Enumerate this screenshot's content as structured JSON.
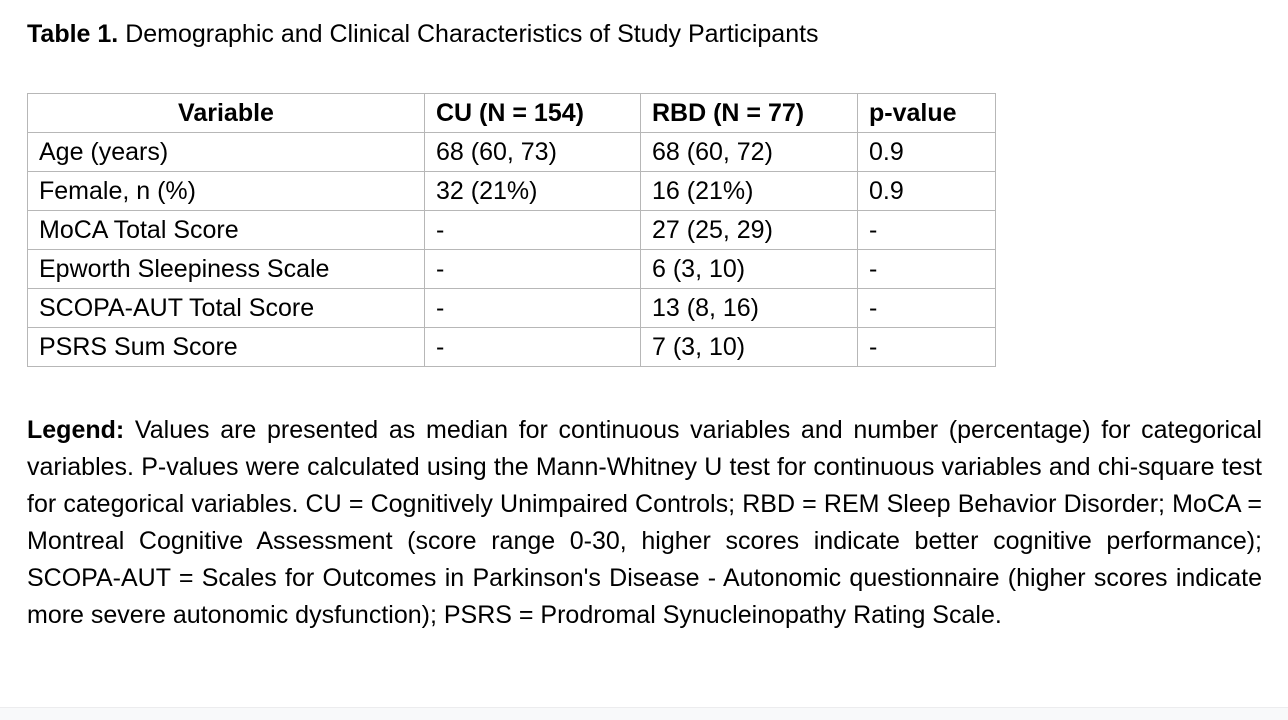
{
  "title": {
    "label": "Table 1.",
    "text": " Demographic and Clinical Characteristics of Study Participants"
  },
  "table": {
    "columns": [
      "Variable",
      "CU (N = 154)",
      "RBD (N = 77)",
      "p-value"
    ],
    "rows": [
      [
        "Age (years)",
        "68 (60, 73)",
        "68 (60, 72)",
        "0.9"
      ],
      [
        "Female, n (%)",
        "32 (21%)",
        "16 (21%)",
        "0.9"
      ],
      [
        "MoCA Total Score",
        "-",
        "27 (25, 29)",
        "-"
      ],
      [
        "Epworth Sleepiness Scale",
        "-",
        "6 (3, 10)",
        "-"
      ],
      [
        "SCOPA-AUT Total Score",
        "-",
        "13 (8, 16)",
        "-"
      ],
      [
        "PSRS Sum Score",
        "-",
        "7 (3, 10)",
        "-"
      ]
    ]
  },
  "legend": {
    "label": "Legend:",
    "text": " Values are presented as median for continuous variables and number (percentage) for categorical variables. P-values were calculated using the Mann-Whitney U test for continuous variables and chi-square test for categorical variables. CU = Cognitively Unimpaired Controls; RBD = REM Sleep Behavior Disorder; MoCA = Montreal Cognitive Assessment (score range 0-30, higher scores indicate better cognitive performance); SCOPA-AUT = Scales for Outcomes in Parkinson's Disease - Autonomic questionnaire (higher scores indicate more severe autonomic dysfunction); PSRS = Prodromal Synucleinopathy Rating Scale."
  },
  "colors": {
    "text": "#000000",
    "table_border": "#b7b7b7",
    "background": "#ffffff",
    "footer_strip": "#f8f9fa"
  }
}
